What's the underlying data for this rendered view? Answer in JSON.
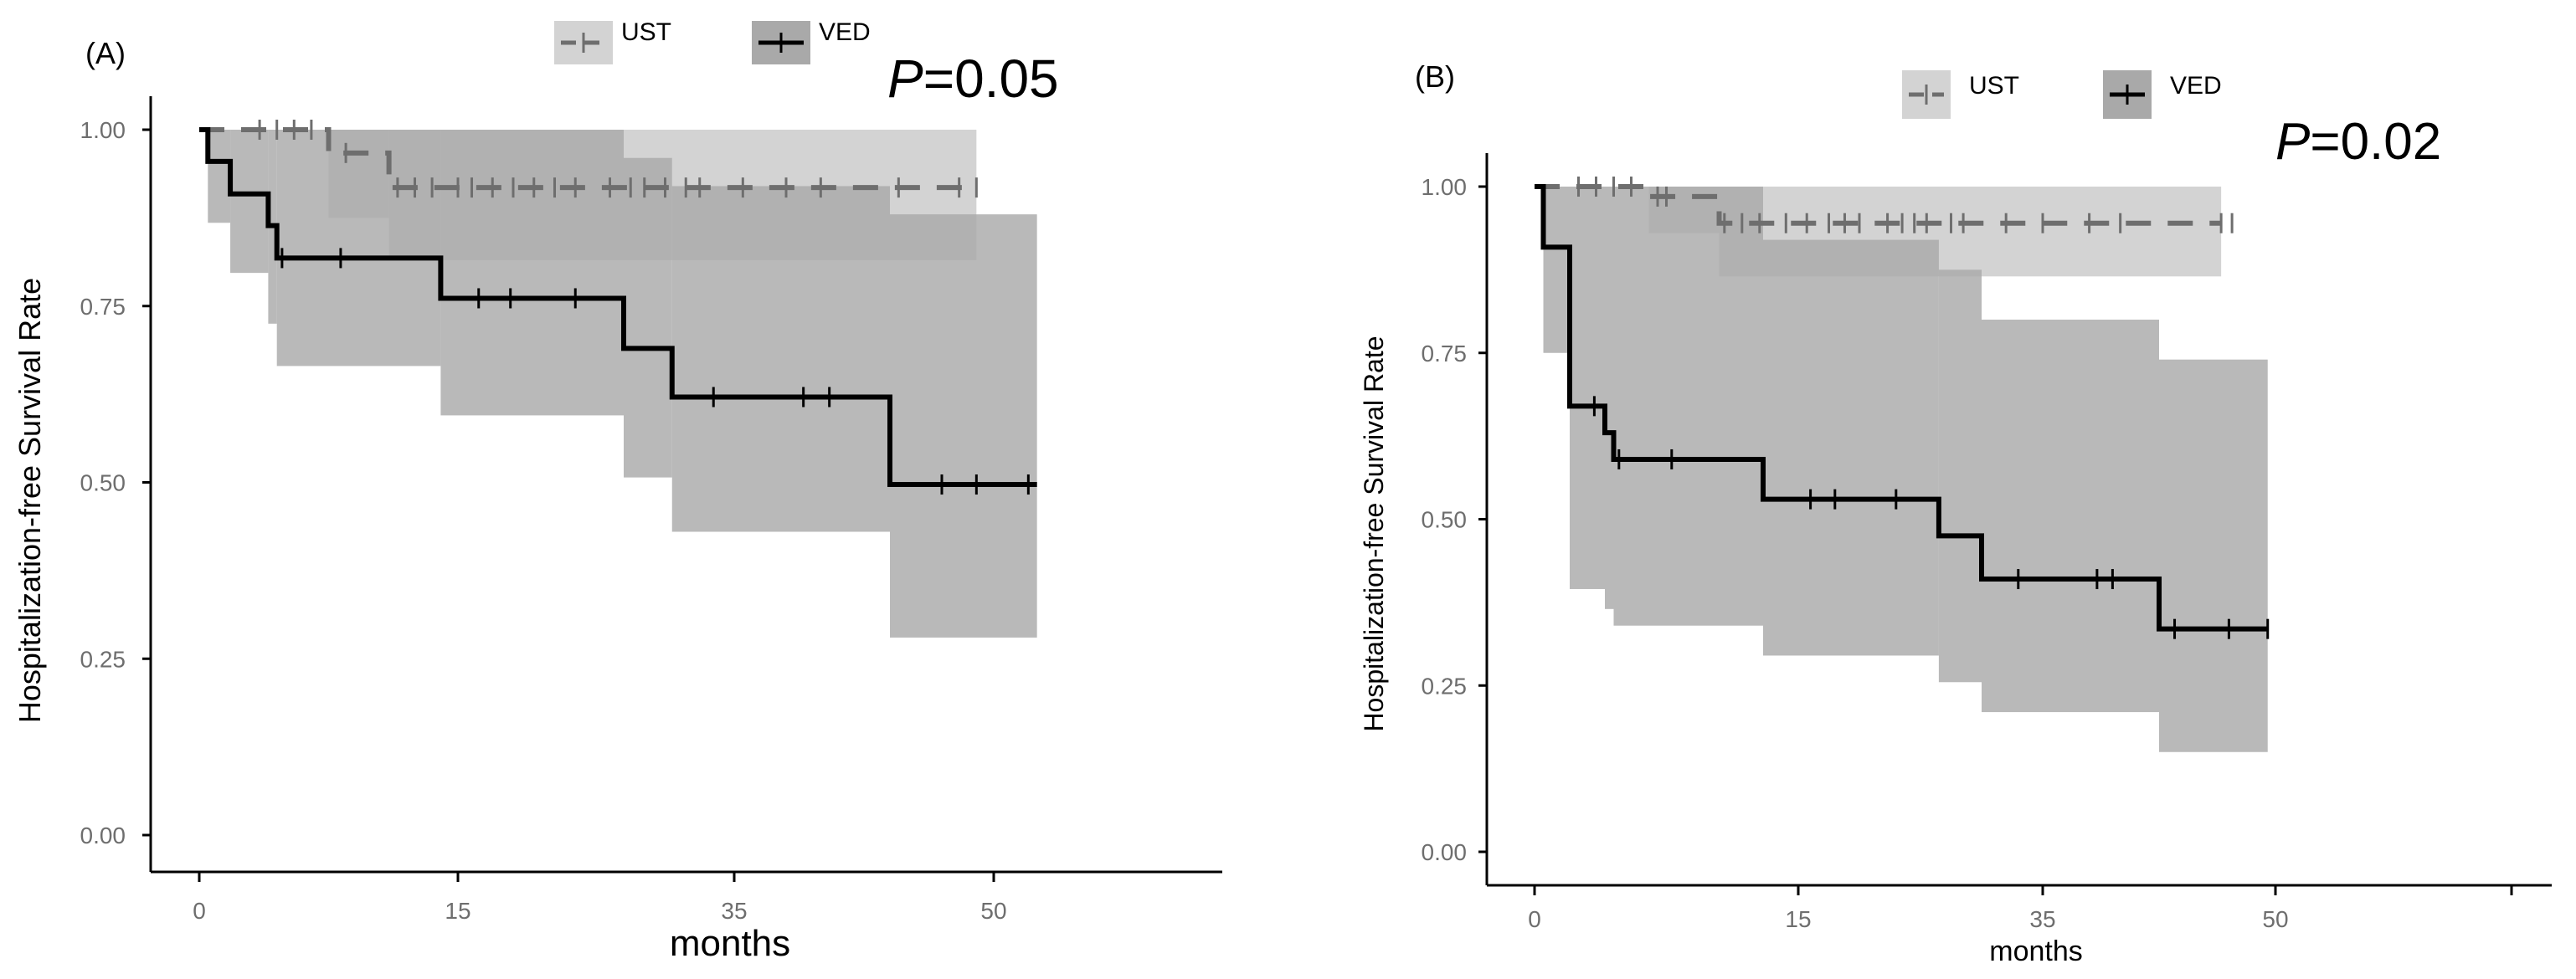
{
  "chart_data": [
    {
      "type": "line",
      "subtype": "kaplan-meier",
      "panel_label": "(A)",
      "xlabel": "months",
      "ylabel": "Hospitalization-free Survival Rate",
      "x_ticks": [
        0,
        15,
        35,
        50
      ],
      "x_tick_labels": [
        "0",
        "15",
        "35",
        "50"
      ],
      "y_ticks": [
        0,
        0.25,
        0.5,
        0.75,
        1.0
      ],
      "y_tick_labels": [
        "0.00",
        "0.25",
        "0.50",
        "0.75",
        "1.00"
      ],
      "ylim": [
        0,
        1
      ],
      "legend_position": "top",
      "annotation": {
        "p_italic": "P",
        "p_rest": "=0.05"
      },
      "series": [
        {
          "name": "UST",
          "line_style": "dashed",
          "color": "#6e6e6e",
          "band_color": "#d3d3d3",
          "steps": [
            [
              0,
              1.0
            ],
            [
              7.5,
              0.967
            ],
            [
              11,
              0.918
            ],
            [
              49,
              0.918
            ]
          ],
          "censors": [
            [
              3.5,
              1.0
            ],
            [
              4.5,
              1.0
            ],
            [
              5.5,
              1.0
            ],
            [
              6.5,
              1.0
            ],
            [
              8.5,
              0.967
            ],
            [
              11.5,
              0.918
            ],
            [
              12.5,
              0.918
            ],
            [
              13.5,
              0.918
            ],
            [
              15,
              0.918
            ],
            [
              16,
              0.918
            ],
            [
              17.5,
              0.918
            ],
            [
              19,
              0.918
            ],
            [
              20.5,
              0.918
            ],
            [
              22,
              0.918
            ],
            [
              23.5,
              0.918
            ],
            [
              26,
              0.918
            ],
            [
              27.5,
              0.918
            ],
            [
              28.5,
              0.918
            ],
            [
              30,
              0.918
            ],
            [
              31.5,
              0.918
            ],
            [
              32.5,
              0.918
            ],
            [
              35.5,
              0.918
            ],
            [
              38,
              0.918
            ],
            [
              40,
              0.918
            ],
            [
              44.5,
              0.918
            ],
            [
              48,
              0.918
            ],
            [
              49,
              0.918
            ]
          ],
          "ci": [
            [
              0,
              1.0,
              1.0
            ],
            [
              7.5,
              1.0,
              0.875
            ],
            [
              11,
              1.0,
              0.815
            ]
          ]
        },
        {
          "name": "VED",
          "line_style": "solid",
          "color": "#000000",
          "band_color": "#a9a9a9",
          "steps": [
            [
              0,
              1.0
            ],
            [
              0.5,
              0.955
            ],
            [
              1.8,
              0.909
            ],
            [
              4.0,
              0.864
            ],
            [
              4.5,
              0.818
            ],
            [
              14,
              0.761
            ],
            [
              27,
              0.69
            ],
            [
              30.5,
              0.621
            ],
            [
              44,
              0.497
            ],
            [
              52.5,
              0.497
            ]
          ],
          "censors": [
            [
              4.8,
              0.818
            ],
            [
              8.2,
              0.818
            ],
            [
              16.5,
              0.761
            ],
            [
              18.8,
              0.761
            ],
            [
              23.5,
              0.761
            ],
            [
              33.5,
              0.621
            ],
            [
              39,
              0.621
            ],
            [
              40.5,
              0.621
            ],
            [
              47,
              0.497
            ],
            [
              49,
              0.497
            ],
            [
              52,
              0.497
            ]
          ],
          "ci": [
            [
              0,
              1.0,
              1.0
            ],
            [
              0.5,
              1.0,
              0.868
            ],
            [
              1.8,
              1.0,
              0.797
            ],
            [
              4.0,
              1.0,
              0.725
            ],
            [
              4.5,
              1.0,
              0.665
            ],
            [
              14,
              1.0,
              0.595
            ],
            [
              27,
              0.96,
              0.507
            ],
            [
              30.5,
              0.92,
              0.43
            ],
            [
              44,
              0.88,
              0.28
            ]
          ]
        }
      ]
    },
    {
      "type": "line",
      "subtype": "kaplan-meier",
      "panel_label": "(B)",
      "xlabel": "months",
      "ylabel": "Hospitalization-free Survival Rate",
      "x_ticks": [
        0,
        15,
        35,
        50,
        65
      ],
      "x_tick_labels": [
        "0",
        "15",
        "35",
        "50",
        ""
      ],
      "y_ticks": [
        0,
        0.25,
        0.5,
        0.75,
        1.0
      ],
      "y_tick_labels": [
        "0.00",
        "0.25",
        "0.50",
        "0.75",
        "1.00"
      ],
      "ylim": [
        0,
        1
      ],
      "legend_position": "top",
      "annotation": {
        "p_italic": "P",
        "p_rest": "=0.02"
      },
      "series": [
        {
          "name": "UST",
          "line_style": "dashed",
          "color": "#6e6e6e",
          "band_color": "#d3d3d3",
          "steps": [
            [
              0,
              1.0
            ],
            [
              6.5,
              0.985
            ],
            [
              10.5,
              0.945
            ],
            [
              46.5,
              0.945
            ]
          ],
          "censors": [
            [
              2.5,
              1.0
            ],
            [
              3.5,
              1.0
            ],
            [
              4.5,
              1.0
            ],
            [
              5.5,
              1.0
            ],
            [
              7,
              0.985
            ],
            [
              7.5,
              0.985
            ],
            [
              10.8,
              0.945
            ],
            [
              11.8,
              0.945
            ],
            [
              12.8,
              0.945
            ],
            [
              14.3,
              0.945
            ],
            [
              15.7,
              0.945
            ],
            [
              17.5,
              0.945
            ],
            [
              18.8,
              0.945
            ],
            [
              20,
              0.945
            ],
            [
              22.3,
              0.945
            ],
            [
              23.5,
              0.945
            ],
            [
              24.5,
              0.945
            ],
            [
              25.5,
              0.945
            ],
            [
              27.5,
              0.945
            ],
            [
              28.5,
              0.945
            ],
            [
              32,
              0.945
            ],
            [
              35,
              0.945
            ],
            [
              38,
              0.945
            ],
            [
              40,
              0.945
            ],
            [
              46.5,
              0.945
            ],
            [
              47.2,
              0.945
            ]
          ],
          "ci": [
            [
              0,
              1.0,
              1.0
            ],
            [
              6.5,
              1.0,
              0.93
            ],
            [
              10.5,
              1.0,
              0.865
            ]
          ]
        },
        {
          "name": "VED",
          "line_style": "solid",
          "color": "#000000",
          "band_color": "#a9a9a9",
          "steps": [
            [
              0,
              1.0
            ],
            [
              0.5,
              0.909
            ],
            [
              2.0,
              0.67
            ],
            [
              4.0,
              0.63
            ],
            [
              4.5,
              0.59
            ],
            [
              13,
              0.53
            ],
            [
              26.5,
              0.475
            ],
            [
              30,
              0.41
            ],
            [
              42.5,
              0.335
            ],
            [
              49.5,
              0.335
            ]
          ],
          "censors": [
            [
              3.4,
              0.67
            ],
            [
              4.8,
              0.59
            ],
            [
              7.8,
              0.59
            ],
            [
              16,
              0.53
            ],
            [
              18,
              0.53
            ],
            [
              23,
              0.53
            ],
            [
              33,
              0.41
            ],
            [
              38.5,
              0.41
            ],
            [
              39.5,
              0.41
            ],
            [
              43.5,
              0.335
            ],
            [
              47,
              0.335
            ],
            [
              49.5,
              0.335
            ]
          ],
          "ci": [
            [
              0,
              1.0,
              1.0
            ],
            [
              0.5,
              1.0,
              0.75
            ],
            [
              2.0,
              1.0,
              0.395
            ],
            [
              4.0,
              1.0,
              0.365
            ],
            [
              4.5,
              1.0,
              0.34
            ],
            [
              13,
              0.92,
              0.295
            ],
            [
              26.5,
              0.875,
              0.255
            ],
            [
              30,
              0.8,
              0.21
            ],
            [
              42.5,
              0.74,
              0.15
            ]
          ]
        }
      ]
    }
  ]
}
